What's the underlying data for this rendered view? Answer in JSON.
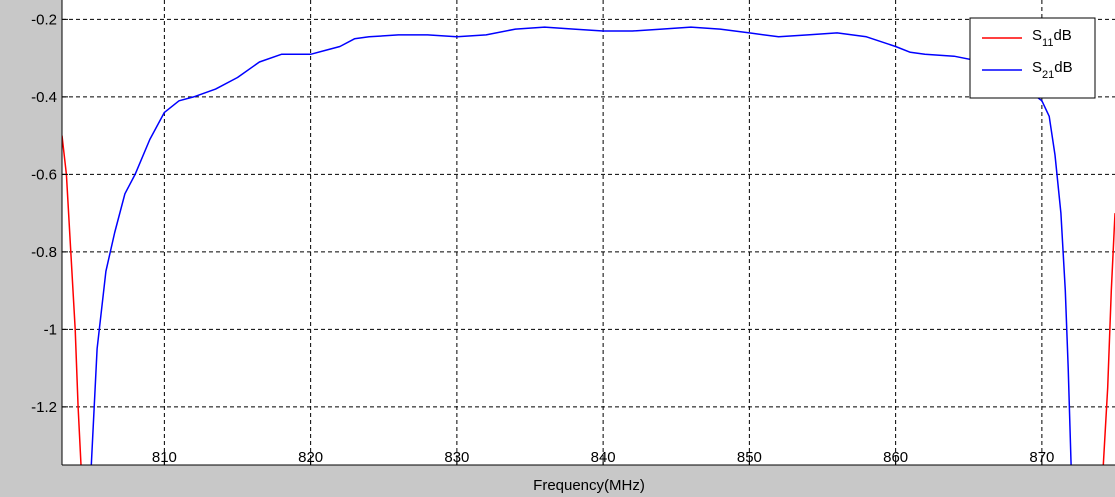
{
  "chart_data": {
    "type": "line",
    "title": "",
    "xlabel": "Frequency(MHz)",
    "ylabel": "",
    "xlim": [
      803,
      875
    ],
    "ylim": [
      -1.35,
      -0.15
    ],
    "grid": true,
    "legend_position": "top-right",
    "x_ticks": [
      810,
      820,
      830,
      840,
      850,
      860,
      870
    ],
    "x_tick_labels": [
      "810",
      "820",
      "830",
      "840",
      "850",
      "860",
      "870"
    ],
    "y_ticks": [
      -0.2,
      -0.4,
      -0.6,
      -0.8,
      -1,
      -1.2
    ],
    "y_tick_labels": [
      "-0.2",
      "-0.4",
      "-0.6",
      "-0.8",
      "-1",
      "-1.2"
    ],
    "series": [
      {
        "name": "S11 dB",
        "legend_main": "S",
        "legend_sub": "11",
        "legend_unit": "dB",
        "color": "#ff0000",
        "segments": [
          [
            [
              803.0,
              -0.5
            ],
            [
              803.3,
              -0.6
            ],
            [
              803.6,
              -0.8
            ],
            [
              803.9,
              -1.0
            ],
            [
              804.1,
              -1.2
            ],
            [
              804.3,
              -1.35
            ]
          ],
          [
            [
              874.2,
              -1.35
            ],
            [
              874.5,
              -1.15
            ],
            [
              874.75,
              -0.9
            ],
            [
              875.0,
              -0.7
            ]
          ]
        ]
      },
      {
        "name": "S21 dB",
        "legend_main": "S",
        "legend_sub": "21",
        "legend_unit": "dB",
        "color": "#0000ff",
        "segments": [
          [
            [
              805.0,
              -1.35
            ],
            [
              805.4,
              -1.05
            ],
            [
              806.0,
              -0.85
            ],
            [
              806.6,
              -0.75
            ],
            [
              807.3,
              -0.65
            ],
            [
              808.0,
              -0.6
            ],
            [
              809.0,
              -0.51
            ],
            [
              810.0,
              -0.44
            ],
            [
              811.0,
              -0.41
            ],
            [
              812.0,
              -0.4
            ],
            [
              813.5,
              -0.38
            ],
            [
              815.0,
              -0.35
            ],
            [
              816.5,
              -0.31
            ],
            [
              818.0,
              -0.29
            ],
            [
              819.0,
              -0.29
            ],
            [
              820.0,
              -0.29
            ],
            [
              821.0,
              -0.28
            ],
            [
              822.0,
              -0.27
            ],
            [
              823.0,
              -0.25
            ],
            [
              824.0,
              -0.245
            ],
            [
              826.0,
              -0.24
            ],
            [
              828.0,
              -0.24
            ],
            [
              830.0,
              -0.245
            ],
            [
              832.0,
              -0.24
            ],
            [
              834.0,
              -0.225
            ],
            [
              836.0,
              -0.22
            ],
            [
              838.0,
              -0.225
            ],
            [
              840.0,
              -0.23
            ],
            [
              842.0,
              -0.23
            ],
            [
              844.0,
              -0.225
            ],
            [
              846.0,
              -0.22
            ],
            [
              848.0,
              -0.225
            ],
            [
              850.0,
              -0.235
            ],
            [
              852.0,
              -0.245
            ],
            [
              854.0,
              -0.24
            ],
            [
              856.0,
              -0.235
            ],
            [
              858.0,
              -0.245
            ],
            [
              860.0,
              -0.27
            ],
            [
              861.0,
              -0.285
            ],
            [
              862.0,
              -0.29
            ],
            [
              864.0,
              -0.295
            ],
            [
              866.0,
              -0.31
            ],
            [
              867.5,
              -0.34
            ],
            [
              868.5,
              -0.37
            ],
            [
              869.3,
              -0.39
            ],
            [
              870.0,
              -0.41
            ],
            [
              870.5,
              -0.45
            ],
            [
              870.9,
              -0.55
            ],
            [
              871.3,
              -0.7
            ],
            [
              871.6,
              -0.9
            ],
            [
              871.8,
              -1.1
            ],
            [
              872.0,
              -1.35
            ]
          ]
        ]
      }
    ]
  }
}
